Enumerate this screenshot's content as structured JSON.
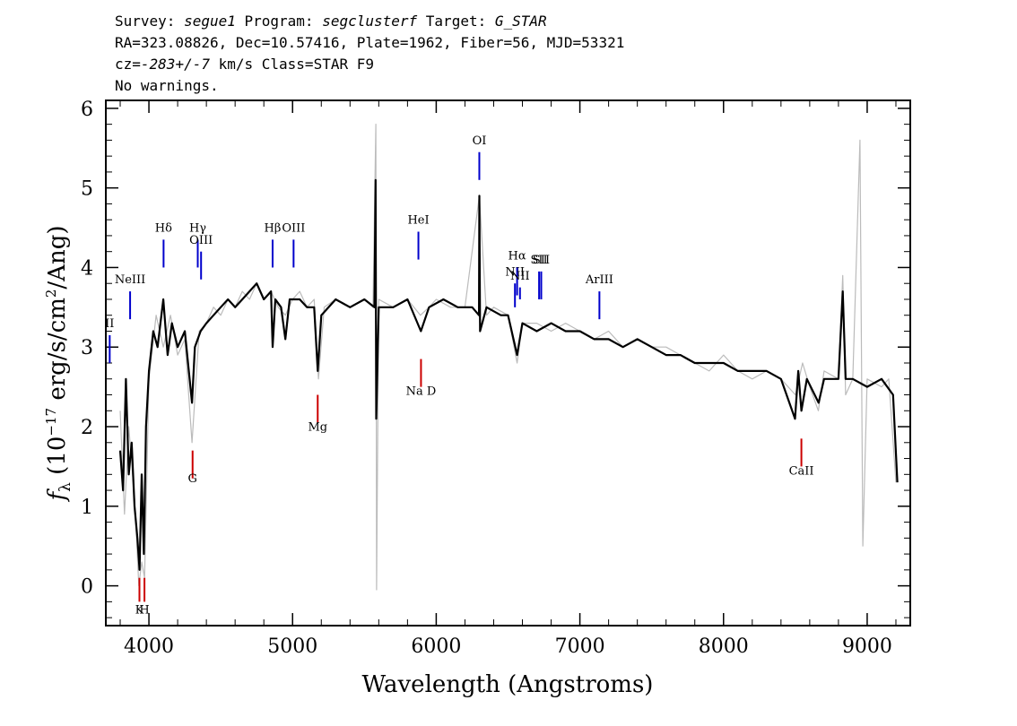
{
  "header": {
    "line1_prefix_survey": "Survey: ",
    "survey": "segue1",
    "line1_prefix_program": " Program: ",
    "program": "segclusterf",
    "line1_prefix_target": " Target: ",
    "target": "G_STAR",
    "line2": "RA=323.08826, Dec=10.57416, Plate=1962, Fiber=56, MJD=53321",
    "line3_prefix": "cz=",
    "line3_cz": "-283+/-7",
    "line3_suffix": " km/s Class=STAR F9",
    "line4": "No warnings."
  },
  "chart_data": {
    "type": "line",
    "xlabel": "Wavelength (Angstroms)",
    "ylabel": "f_λ (10^-17 erg/s/cm^2/Ang)",
    "xlim": [
      3700,
      9300
    ],
    "ylim": [
      -0.5,
      6.1
    ],
    "xticks": [
      "4000",
      "5000",
      "6000",
      "7000",
      "8000",
      "9000"
    ],
    "yticks": [
      "0",
      "1",
      "2",
      "3",
      "4",
      "5",
      "6"
    ],
    "series": [
      {
        "role": "raw-flux",
        "color": "#bbbbbb",
        "points": [
          [
            3800,
            2.2
          ],
          [
            3830,
            0.9
          ],
          [
            3860,
            2.0
          ],
          [
            3900,
            1.1
          ],
          [
            3930,
            0.0
          ],
          [
            3950,
            0.3
          ],
          [
            3970,
            0.1
          ],
          [
            4000,
            2.6
          ],
          [
            4050,
            3.4
          ],
          [
            4100,
            3.0
          ],
          [
            4150,
            3.4
          ],
          [
            4200,
            2.9
          ],
          [
            4250,
            3.1
          ],
          [
            4300,
            1.8
          ],
          [
            4350,
            3.2
          ],
          [
            4400,
            3.3
          ],
          [
            4450,
            3.5
          ],
          [
            4500,
            3.4
          ],
          [
            4550,
            3.6
          ],
          [
            4600,
            3.5
          ],
          [
            4650,
            3.7
          ],
          [
            4700,
            3.6
          ],
          [
            4750,
            3.8
          ],
          [
            4800,
            3.6
          ],
          [
            4850,
            3.7
          ],
          [
            4900,
            3.5
          ],
          [
            4950,
            3.4
          ],
          [
            5000,
            3.6
          ],
          [
            5050,
            3.7
          ],
          [
            5100,
            3.5
          ],
          [
            5150,
            3.6
          ],
          [
            5180,
            2.6
          ],
          [
            5220,
            3.5
          ],
          [
            5300,
            3.6
          ],
          [
            5400,
            3.5
          ],
          [
            5500,
            3.6
          ],
          [
            5560,
            3.5
          ],
          [
            5580,
            5.8
          ],
          [
            5585,
            -0.05
          ],
          [
            5600,
            3.6
          ],
          [
            5700,
            3.5
          ],
          [
            5800,
            3.6
          ],
          [
            5890,
            3.4
          ],
          [
            5950,
            3.5
          ],
          [
            6000,
            3.6
          ],
          [
            6100,
            3.5
          ],
          [
            6200,
            3.5
          ],
          [
            6300,
            4.9
          ],
          [
            6350,
            3.4
          ],
          [
            6400,
            3.5
          ],
          [
            6500,
            3.4
          ],
          [
            6563,
            2.8
          ],
          [
            6600,
            3.3
          ],
          [
            6700,
            3.3
          ],
          [
            6800,
            3.2
          ],
          [
            6900,
            3.3
          ],
          [
            7000,
            3.2
          ],
          [
            7100,
            3.1
          ],
          [
            7200,
            3.2
          ],
          [
            7300,
            3.0
          ],
          [
            7400,
            3.1
          ],
          [
            7500,
            3.0
          ],
          [
            7600,
            3.0
          ],
          [
            7700,
            2.9
          ],
          [
            7800,
            2.8
          ],
          [
            7900,
            2.7
          ],
          [
            8000,
            2.9
          ],
          [
            8100,
            2.7
          ],
          [
            8200,
            2.6
          ],
          [
            8300,
            2.7
          ],
          [
            8400,
            2.6
          ],
          [
            8500,
            2.4
          ],
          [
            8550,
            2.8
          ],
          [
            8600,
            2.5
          ],
          [
            8660,
            2.2
          ],
          [
            8700,
            2.7
          ],
          [
            8800,
            2.6
          ],
          [
            8830,
            3.9
          ],
          [
            8850,
            2.4
          ],
          [
            8900,
            2.6
          ],
          [
            8950,
            5.6
          ],
          [
            8970,
            0.5
          ],
          [
            9000,
            2.6
          ],
          [
            9100,
            2.5
          ],
          [
            9150,
            2.6
          ],
          [
            9200,
            1.3
          ]
        ]
      },
      {
        "role": "smoothed-flux",
        "color": "#000000",
        "points": [
          [
            3800,
            1.7
          ],
          [
            3820,
            1.2
          ],
          [
            3840,
            2.6
          ],
          [
            3860,
            1.4
          ],
          [
            3880,
            1.8
          ],
          [
            3900,
            1.0
          ],
          [
            3920,
            0.6
          ],
          [
            3935,
            0.2
          ],
          [
            3950,
            1.4
          ],
          [
            3965,
            0.4
          ],
          [
            3980,
            2.0
          ],
          [
            4000,
            2.7
          ],
          [
            4030,
            3.2
          ],
          [
            4060,
            3.0
          ],
          [
            4100,
            3.6
          ],
          [
            4130,
            2.9
          ],
          [
            4160,
            3.3
          ],
          [
            4200,
            3.0
          ],
          [
            4250,
            3.2
          ],
          [
            4300,
            2.3
          ],
          [
            4320,
            3.0
          ],
          [
            4360,
            3.2
          ],
          [
            4400,
            3.3
          ],
          [
            4450,
            3.4
          ],
          [
            4500,
            3.5
          ],
          [
            4550,
            3.6
          ],
          [
            4600,
            3.5
          ],
          [
            4650,
            3.6
          ],
          [
            4700,
            3.7
          ],
          [
            4750,
            3.8
          ],
          [
            4800,
            3.6
          ],
          [
            4850,
            3.7
          ],
          [
            4861,
            3.0
          ],
          [
            4880,
            3.6
          ],
          [
            4920,
            3.5
          ],
          [
            4950,
            3.1
          ],
          [
            4980,
            3.6
          ],
          [
            5050,
            3.6
          ],
          [
            5100,
            3.5
          ],
          [
            5150,
            3.5
          ],
          [
            5175,
            2.7
          ],
          [
            5200,
            3.4
          ],
          [
            5300,
            3.6
          ],
          [
            5400,
            3.5
          ],
          [
            5500,
            3.6
          ],
          [
            5570,
            3.5
          ],
          [
            5578,
            5.1
          ],
          [
            5582,
            2.1
          ],
          [
            5600,
            3.5
          ],
          [
            5700,
            3.5
          ],
          [
            5800,
            3.6
          ],
          [
            5893,
            3.2
          ],
          [
            5950,
            3.5
          ],
          [
            6050,
            3.6
          ],
          [
            6150,
            3.5
          ],
          [
            6250,
            3.5
          ],
          [
            6298,
            3.4
          ],
          [
            6300,
            4.9
          ],
          [
            6305,
            3.2
          ],
          [
            6350,
            3.5
          ],
          [
            6450,
            3.4
          ],
          [
            6500,
            3.4
          ],
          [
            6563,
            2.9
          ],
          [
            6600,
            3.3
          ],
          [
            6700,
            3.2
          ],
          [
            6800,
            3.3
          ],
          [
            6900,
            3.2
          ],
          [
            7000,
            3.2
          ],
          [
            7100,
            3.1
          ],
          [
            7200,
            3.1
          ],
          [
            7300,
            3.0
          ],
          [
            7400,
            3.1
          ],
          [
            7500,
            3.0
          ],
          [
            7600,
            2.9
          ],
          [
            7700,
            2.9
          ],
          [
            7800,
            2.8
          ],
          [
            7900,
            2.8
          ],
          [
            8000,
            2.8
          ],
          [
            8100,
            2.7
          ],
          [
            8200,
            2.7
          ],
          [
            8300,
            2.7
          ],
          [
            8400,
            2.6
          ],
          [
            8498,
            2.1
          ],
          [
            8520,
            2.7
          ],
          [
            8542,
            2.2
          ],
          [
            8580,
            2.6
          ],
          [
            8662,
            2.3
          ],
          [
            8700,
            2.6
          ],
          [
            8800,
            2.6
          ],
          [
            8830,
            3.7
          ],
          [
            8850,
            2.6
          ],
          [
            8900,
            2.6
          ],
          [
            9000,
            2.5
          ],
          [
            9100,
            2.6
          ],
          [
            9180,
            2.4
          ],
          [
            9210,
            1.3
          ]
        ]
      }
    ],
    "annotations": {
      "emission": [
        {
          "label": "OI",
          "wavelength": 6300,
          "label_y": 5.55,
          "y0": 5.45,
          "y1": 5.1
        },
        {
          "label": "HeI",
          "wavelength": 5876,
          "label_y": 4.55,
          "y0": 4.45,
          "y1": 4.1
        },
        {
          "label": "Hδ",
          "wavelength": 4102,
          "label_y": 4.45,
          "y0": 4.35,
          "y1": 4.0
        },
        {
          "label": "Hγ",
          "wavelength": 4340,
          "label_y": 4.45,
          "y0": 4.35,
          "y1": 4.0
        },
        {
          "label": "OIII",
          "wavelength": 4363,
          "label_y": 4.3,
          "y0": 4.2,
          "y1": 3.85
        },
        {
          "label": "Hβ",
          "wavelength": 4861,
          "label_y": 4.45,
          "y0": 4.35,
          "y1": 4.0
        },
        {
          "label": "OIII",
          "wavelength": 5007,
          "label_y": 4.45,
          "y0": 4.35,
          "y1": 4.0
        },
        {
          "label": "NeIII",
          "wavelength": 3869,
          "label_y": 3.8,
          "y0": 3.7,
          "y1": 3.35
        },
        {
          "label": "II",
          "wavelength": 3727,
          "label_y": 3.25,
          "y0": 3.15,
          "y1": 2.8
        },
        {
          "label": "NII",
          "wavelength": 6548,
          "label_y": 3.9,
          "y0": 3.8,
          "y1": 3.5
        },
        {
          "label": "Hα",
          "wavelength": 6563,
          "label_y": 4.1,
          "y0": 4.0,
          "y1": 3.65
        },
        {
          "label": "SII",
          "wavelength": 6716,
          "label_y": 4.05,
          "y0": 3.95,
          "y1": 3.6
        },
        {
          "label": "NII",
          "wavelength": 6583,
          "label_y": 3.85,
          "y0": 3.75,
          "y1": 3.6
        },
        {
          "label": "SII",
          "wavelength": 6731,
          "label_y": 4.05,
          "y0": 3.95,
          "y1": 3.6
        },
        {
          "label": "ArIII",
          "wavelength": 7136,
          "label_y": 3.8,
          "y0": 3.7,
          "y1": 3.35
        }
      ],
      "absorption": [
        {
          "label": "K",
          "wavelength": 3934,
          "label_y": -0.35,
          "y0": 0.1,
          "y1": -0.2
        },
        {
          "label": "H",
          "wavelength": 3969,
          "label_y": -0.35,
          "y0": 0.1,
          "y1": -0.2
        },
        {
          "label": "G",
          "wavelength": 4304,
          "label_y": 1.3,
          "y0": 1.7,
          "y1": 1.35
        },
        {
          "label": "Mg",
          "wavelength": 5175,
          "label_y": 1.95,
          "y0": 2.4,
          "y1": 2.05
        },
        {
          "label": "Na D",
          "wavelength": 5894,
          "label_y": 2.4,
          "y0": 2.85,
          "y1": 2.5
        },
        {
          "label": "CaII",
          "wavelength": 8542,
          "label_y": 1.4,
          "y0": 1.85,
          "y1": 1.5
        }
      ],
      "emission_color": "#0000cc",
      "absorption_color": "#cc0000"
    }
  }
}
